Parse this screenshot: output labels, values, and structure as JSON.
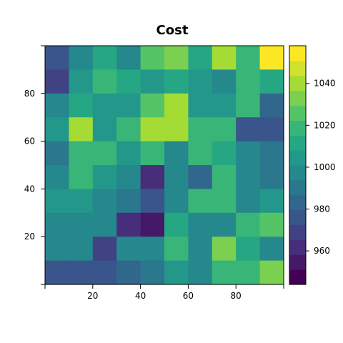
{
  "chart_data": {
    "type": "heatmap",
    "title": "Cost",
    "xlabel": "",
    "ylabel": "",
    "xlim": [
      0,
      100
    ],
    "ylim": [
      0,
      100
    ],
    "x_ticks": [
      20,
      40,
      60,
      80
    ],
    "y_ticks": [
      20,
      40,
      60,
      80
    ],
    "grid_size": [
      10,
      10
    ],
    "rows_top_to_bottom": [
      [
        974,
        994,
        1012,
        1000,
        1024,
        1030,
        1012,
        1040,
        1020,
        1056
      ],
      [
        966,
        1004,
        1018,
        1010,
        1002,
        1012,
        1004,
        998,
        1022,
        1012
      ],
      [
        1000,
        1012,
        1004,
        1004,
        1026,
        1038,
        1002,
        1002,
        1018,
        980
      ],
      [
        1002,
        1040,
        1004,
        1016,
        1040,
        1040,
        1018,
        1018,
        976,
        976
      ],
      [
        990,
        1016,
        1016,
        1004,
        1016,
        1000,
        1020,
        1010,
        994,
        990
      ],
      [
        994,
        1016,
        1004,
        994,
        964,
        1000,
        984,
        1016,
        994,
        990
      ],
      [
        1008,
        1008,
        1000,
        990,
        974,
        1000,
        1016,
        1016,
        1000,
        1006
      ],
      [
        1000,
        1000,
        994,
        962,
        952,
        1012,
        1000,
        1000,
        1018,
        1026
      ],
      [
        994,
        1000,
        972,
        1000,
        1000,
        1016,
        1000,
        1030,
        1010,
        1000
      ],
      [
        978,
        978,
        974,
        980,
        990,
        1006,
        1000,
        1016,
        1016,
        1030
      ]
    ],
    "colorbar": {
      "min": 944,
      "max": 1058,
      "ticks": [
        960,
        980,
        1000,
        1020,
        1040
      ],
      "colormap": "viridis",
      "levels": 16
    }
  }
}
